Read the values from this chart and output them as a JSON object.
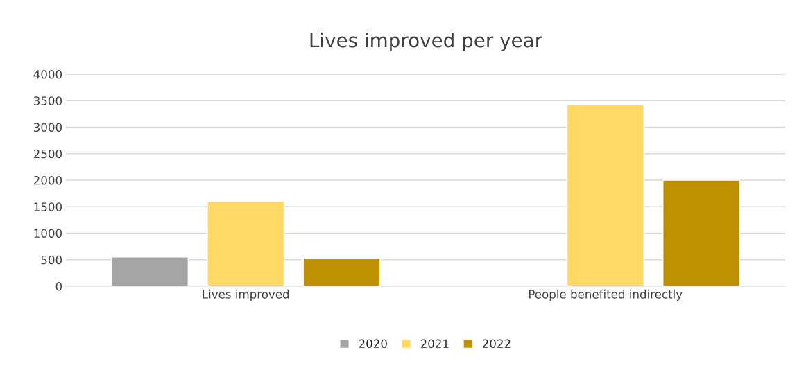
{
  "chart_data": {
    "type": "bar",
    "title": "Lives improved per year",
    "categories": [
      "Lives improved",
      "People benefited indirectly"
    ],
    "series": [
      {
        "name": "2020",
        "color": "#a5a5a5",
        "values": [
          550,
          null
        ]
      },
      {
        "name": "2021",
        "color": "#ffd966",
        "values": [
          1600,
          3420
        ]
      },
      {
        "name": "2022",
        "color": "#bf9000",
        "values": [
          530,
          2000
        ]
      }
    ],
    "ylim": [
      0,
      4000
    ],
    "yticks": [
      0,
      500,
      1000,
      1500,
      2000,
      2500,
      3000,
      3500,
      4000
    ],
    "grid": "y",
    "legend": "bottom"
  }
}
